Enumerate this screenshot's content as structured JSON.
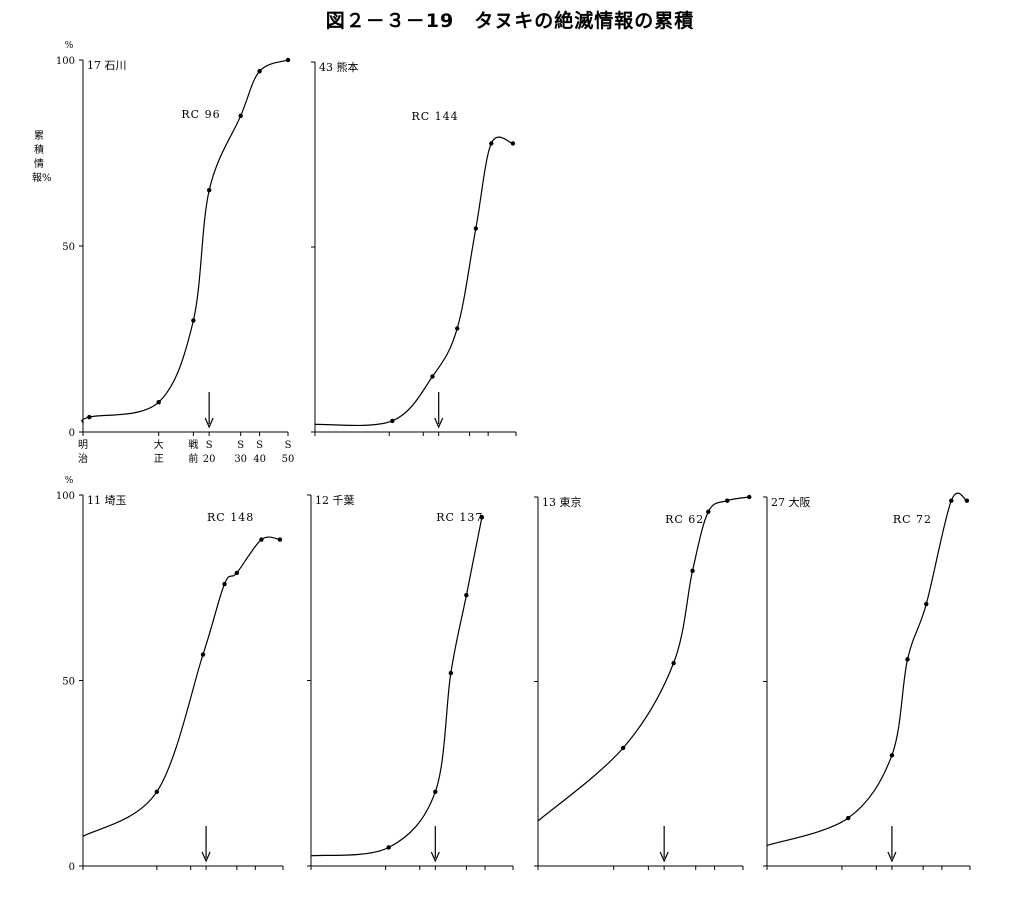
{
  "title": "図２－３－19　タヌキの絶滅情報の累積",
  "ylabel": "累積情報%",
  "percent_unit": "%",
  "chart_data": [
    {
      "type": "line",
      "panel": "17 石川",
      "rc": "RC 96",
      "ylim": [
        0,
        100
      ],
      "yticks": [
        "100",
        "50",
        "0"
      ],
      "xticklabels": [
        "明治",
        "大正",
        "戦前",
        "S 20",
        "S 30",
        "S 40",
        "S 50"
      ],
      "arrow_at": "S 20",
      "x": [
        0.2,
        2.4,
        3.5,
        4.0,
        5.0,
        5.6,
        6.5
      ],
      "y": [
        4,
        8,
        30,
        65,
        85,
        97,
        100
      ]
    },
    {
      "type": "line",
      "panel": "43 熊本",
      "rc": "RC 144",
      "ylim": [
        0,
        100
      ],
      "yticks": [],
      "xticklabels": [],
      "x": [
        2.5,
        3.8,
        4.6,
        5.2,
        5.7,
        6.4
      ],
      "y": [
        3,
        15,
        28,
        55,
        78,
        78
      ]
    },
    {
      "type": "line",
      "panel": "11 埼玉",
      "rc": "RC 148",
      "ylim": [
        0,
        100
      ],
      "yticks": [
        "100",
        "50",
        "0"
      ],
      "xticklabels": [],
      "x": [
        2.4,
        3.9,
        4.6,
        5.0,
        5.8,
        6.4
      ],
      "y": [
        20,
        57,
        76,
        79,
        88,
        88
      ]
    },
    {
      "type": "line",
      "panel": "12 千葉",
      "rc": "RC 137",
      "ylim": [
        0,
        100
      ],
      "yticks": [],
      "xticklabels": [],
      "x": [
        2.5,
        4.0,
        4.5,
        5.0,
        5.5
      ],
      "y": [
        5,
        20,
        52,
        73,
        94
      ]
    },
    {
      "type": "line",
      "panel": "13 東京",
      "rc": "RC 62",
      "ylim": [
        0,
        100
      ],
      "yticks": [],
      "xticklabels": [],
      "x": [
        2.7,
        4.3,
        4.9,
        5.4,
        6.0,
        6.7
      ],
      "y": [
        32,
        55,
        80,
        96,
        99,
        100
      ]
    },
    {
      "type": "line",
      "panel": "27 大阪",
      "rc": "RC 72",
      "ylim": [
        0,
        100
      ],
      "yticks": [],
      "xticklabels": [],
      "x": [
        2.6,
        4.0,
        4.5,
        5.1,
        5.9,
        6.4
      ],
      "y": [
        13,
        30,
        56,
        71,
        99,
        99
      ]
    }
  ]
}
